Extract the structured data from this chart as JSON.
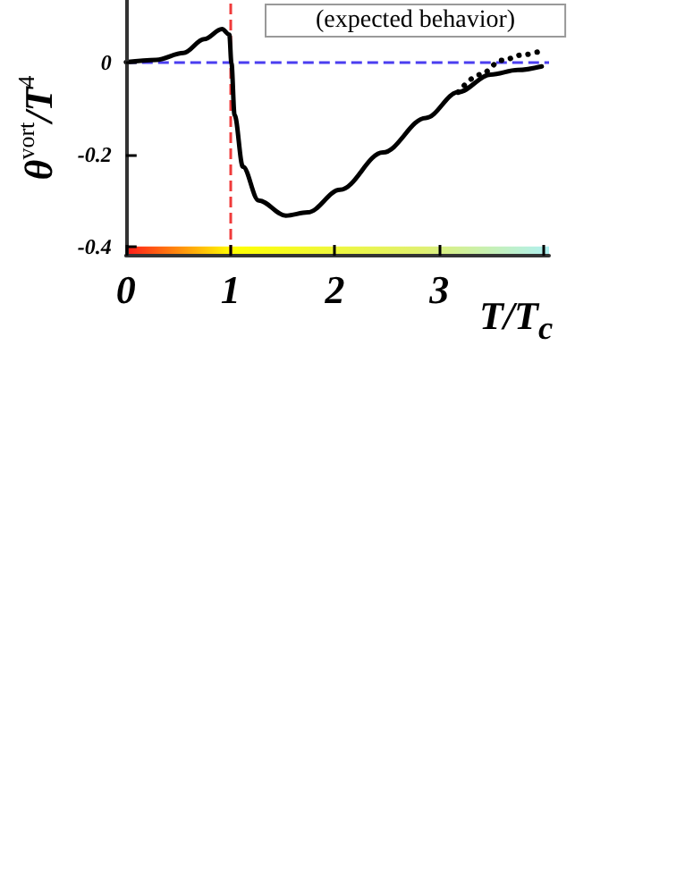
{
  "chart_data": {
    "type": "line",
    "xlabel": "T/T$_{c}$",
    "ylabel": "θ$^{vort}$/T$^{4}$",
    "xlim": [
      0,
      4.05
    ],
    "ylim": [
      -0.42,
      0.135
    ],
    "xticks": [
      0,
      1,
      2,
      3,
      {
        "value": 4,
        "label": null
      }
    ],
    "yticks": [
      -0.4,
      -0.2,
      0
    ],
    "series": [
      {
        "color": "#000000",
        "line_style": "solid",
        "x": [
          0,
          0.29,
          0.55,
          0.75,
          0.92,
          0.99,
          1.01,
          1.04,
          1.12,
          1.27,
          1.53,
          1.74,
          2.05,
          2.46,
          2.87,
          3.18,
          3.49,
          3.75,
          3.98
        ],
        "values": [
          0,
          0.005,
          0.02,
          0.05,
          0.072,
          0.06,
          -0.002,
          -0.115,
          -0.227,
          -0.3,
          -0.333,
          -0.326,
          -0.277,
          -0.196,
          -0.121,
          -0.065,
          -0.027,
          -0.017,
          -0.009
        ]
      },
      {
        "color": "#000000",
        "line_style": "dotted",
        "x": [
          3.18,
          3.39,
          3.6,
          3.8,
          3.98
        ],
        "values": [
          -0.065,
          -0.027,
          0.004,
          0.016,
          0.025
        ]
      }
    ],
    "ref_lines": [
      {
        "axis": "y",
        "value": 0,
        "color": "#4a3df0",
        "line_style": "dashed"
      },
      {
        "axis": "x",
        "value": 1,
        "color": "#f03a3a",
        "line_style": "dashed"
      }
    ],
    "bands": [
      {
        "axis": "y",
        "from": -0.42,
        "to": -0.4
      }
    ],
    "annotations": [
      "(expected behavior)"
    ],
    "marker": "none",
    "grid": false
  }
}
